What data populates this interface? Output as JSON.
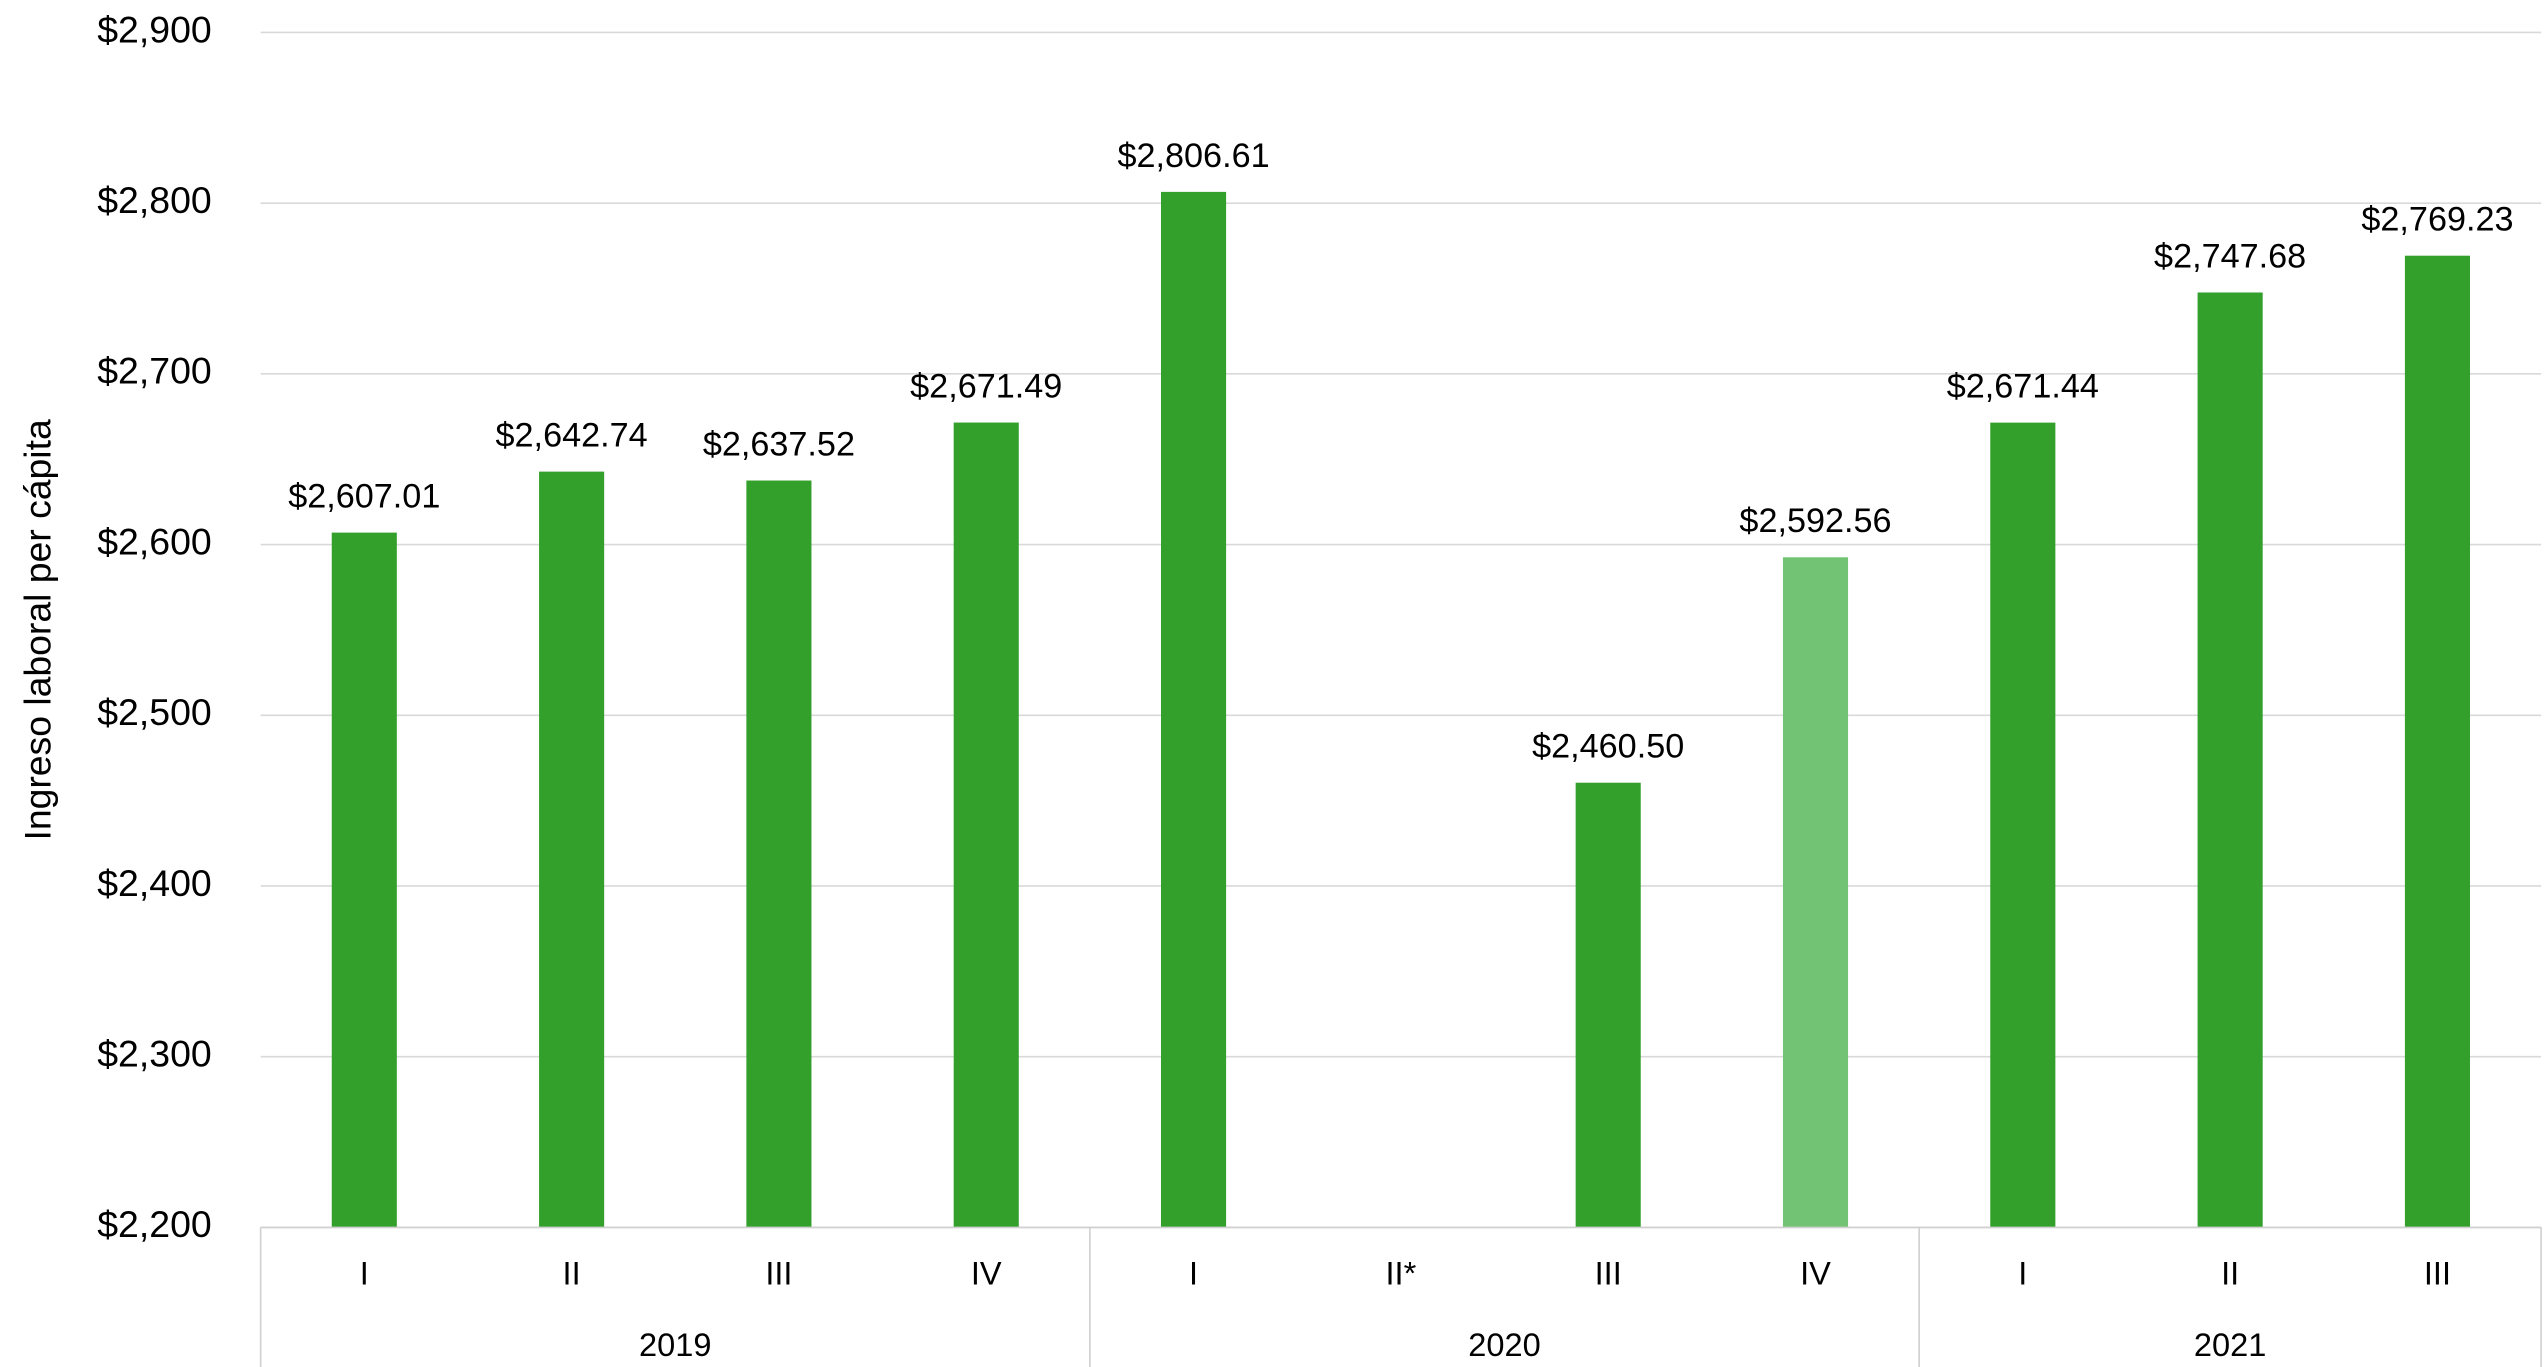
{
  "chart_data": {
    "type": "bar",
    "y_label": "Ingreso laboral per cápita",
    "categories": [
      "I",
      "II",
      "III",
      "IV",
      "I",
      "II*",
      "III",
      "IV",
      "I",
      "II",
      "III"
    ],
    "groups": [
      {
        "name": "2019",
        "count": 4
      },
      {
        "name": "2020",
        "count": 4
      },
      {
        "name": "2021",
        "count": 3
      }
    ],
    "values": [
      2607.01,
      2642.74,
      2637.52,
      2671.49,
      2806.61,
      null,
      2460.5,
      2592.56,
      2671.44,
      2747.68,
      2769.23
    ],
    "value_labels": [
      "$2,607.01",
      "$2,642.74",
      "$2,637.52",
      "$2,671.49",
      "$2,806.61",
      null,
      "$2,460.50",
      "$2,592.56",
      "$2,671.44",
      "$2,747.68",
      "$2,769.23"
    ],
    "colors": [
      "#33a02c",
      "#33a02c",
      "#33a02c",
      "#33a02c",
      "#33a02c",
      "#33a02c",
      "#33a02c",
      "#72c373",
      "#33a02c",
      "#33a02c",
      "#33a02c"
    ],
    "ylim": [
      2200,
      2900
    ],
    "yticks": [
      {
        "value": 2200,
        "label": "$2,200"
      },
      {
        "value": 2300,
        "label": "$2,300"
      },
      {
        "value": 2400,
        "label": "$2,400"
      },
      {
        "value": 2500,
        "label": "$2,500"
      },
      {
        "value": 2600,
        "label": "$2,600"
      },
      {
        "value": 2700,
        "label": "$2,700"
      },
      {
        "value": 2800,
        "label": "$2,800"
      },
      {
        "value": 2900,
        "label": "$2,900"
      }
    ],
    "grid": true
  }
}
